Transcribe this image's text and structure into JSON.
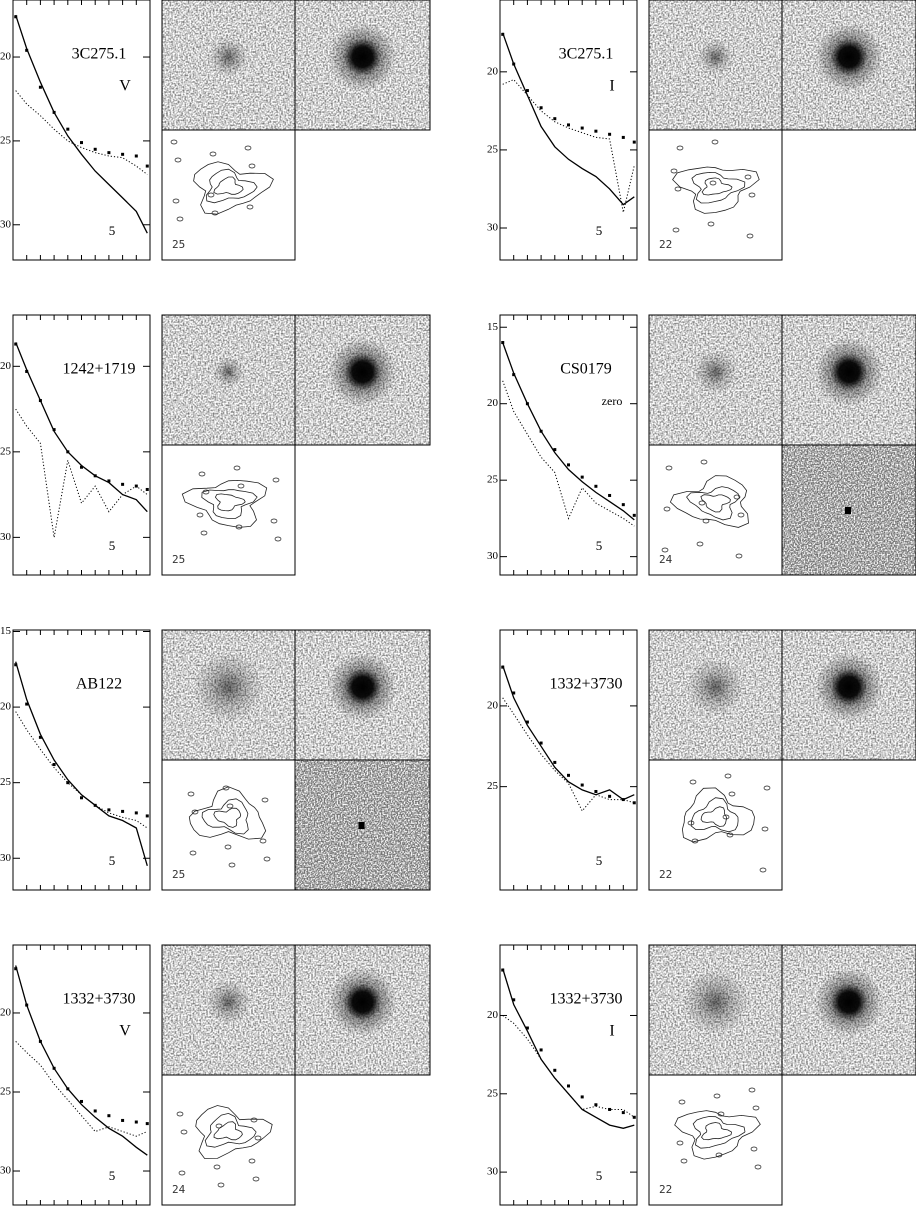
{
  "chart_data": [
    {
      "type": "line",
      "title": "3C275.1",
      "band": "V",
      "scale_label": "5",
      "contour_label": "25",
      "xlim": [
        0,
        10
      ],
      "ylim": [
        16.6,
        32.1
      ],
      "yticks": [
        20,
        25,
        30
      ],
      "x": [
        0.2,
        1,
        2,
        3,
        4,
        5,
        6,
        7,
        8,
        9,
        9.8
      ],
      "series": [
        {
          "style": "solid",
          "color": "#000000",
          "values": [
            17.5,
            19.5,
            21.5,
            23.3,
            24.7,
            25.8,
            26.8,
            27.6,
            28.4,
            29.2,
            30.5
          ]
        },
        {
          "style": "dotted",
          "color": "#000000",
          "values": [
            22,
            22.8,
            23.5,
            24.3,
            25,
            25.4,
            25.7,
            25.9,
            26,
            26.5,
            27
          ]
        },
        {
          "style": "points",
          "color": "#000000",
          "values": [
            17.6,
            19.6,
            21.8,
            23.3,
            24.3,
            25.1,
            25.5,
            25.7,
            25.8,
            25.9,
            26.5
          ]
        }
      ]
    },
    {
      "type": "line",
      "title": "3C275.1",
      "band": "I",
      "scale_label": "5",
      "contour_label": "22",
      "xlim": [
        0,
        10
      ],
      "ylim": [
        15.4,
        32.05
      ],
      "yticks": [
        20,
        25,
        30
      ],
      "x": [
        0.2,
        1,
        2,
        3,
        4,
        5,
        6,
        7,
        8,
        9,
        9.8
      ],
      "series": [
        {
          "style": "solid",
          "color": "#000000",
          "values": [
            17.5,
            19.5,
            21.5,
            23.5,
            24.8,
            25.6,
            26.2,
            26.7,
            27.5,
            28.5,
            28
          ]
        },
        {
          "style": "dotted",
          "color": "#000000",
          "values": [
            20.8,
            20.5,
            21.5,
            22.5,
            23.2,
            23.6,
            23.9,
            24.2,
            24.3,
            29,
            26
          ]
        },
        {
          "style": "points",
          "color": "#000000",
          "values": [
            17.6,
            19.5,
            21.2,
            22.3,
            23,
            23.4,
            23.6,
            23.8,
            24,
            24.2,
            24.5
          ]
        }
      ]
    },
    {
      "type": "line",
      "title": "1242+1719",
      "scale_label": "5",
      "contour_label": "25",
      "xlim": [
        0,
        10
      ],
      "ylim": [
        17.0,
        32.2
      ],
      "yticks": [
        20,
        25,
        30
      ],
      "x": [
        0.2,
        1,
        2,
        3,
        4,
        5,
        6,
        7,
        8,
        9,
        9.8
      ],
      "series": [
        {
          "style": "solid",
          "color": "#000000",
          "values": [
            18.6,
            20.2,
            22,
            23.8,
            25,
            25.8,
            26.4,
            26.8,
            27.5,
            27.8,
            28.5
          ]
        },
        {
          "style": "dotted",
          "color": "#000000",
          "values": [
            22.5,
            23.5,
            24.5,
            30,
            25.5,
            28,
            27,
            28.5,
            27.5,
            27,
            27.5
          ]
        },
        {
          "style": "points",
          "color": "#000000",
          "values": [
            18.7,
            20.3,
            22,
            23.7,
            25,
            25.9,
            26.4,
            26.7,
            26.9,
            27,
            27.2
          ]
        }
      ]
    },
    {
      "type": "line",
      "title": "CS0179",
      "band": "zero",
      "scale_label": "5",
      "contour_label": "24",
      "xlim": [
        0,
        10
      ],
      "ylim": [
        14.2,
        31.2
      ],
      "yticks": [
        15,
        20,
        25,
        30
      ],
      "x": [
        0.2,
        1,
        2,
        3,
        4,
        5,
        6,
        7,
        8,
        9,
        9.8
      ],
      "series": [
        {
          "style": "solid",
          "color": "#000000",
          "values": [
            16,
            18,
            20,
            21.8,
            23.2,
            24.3,
            25.1,
            25.8,
            26.4,
            27,
            27.6
          ]
        },
        {
          "style": "dotted",
          "color": "#000000",
          "values": [
            18.5,
            20.5,
            22,
            23.5,
            24.5,
            27.5,
            25.5,
            26.5,
            27,
            27.5,
            28
          ]
        },
        {
          "style": "points",
          "color": "#000000",
          "values": [
            16,
            18.1,
            20,
            21.8,
            23,
            24,
            24.8,
            25.4,
            26,
            26.6,
            27.3
          ]
        }
      ]
    },
    {
      "type": "line",
      "title": "AB122",
      "scale_label": "5",
      "contour_label": "25",
      "xlim": [
        0,
        10
      ],
      "ylim": [
        14.9,
        32.1
      ],
      "yticks": [
        15,
        20,
        25,
        30
      ],
      "x": [
        0.2,
        1,
        2,
        3,
        4,
        5,
        6,
        7,
        8,
        9,
        9.8
      ],
      "series": [
        {
          "style": "solid",
          "color": "#000000",
          "values": [
            17,
            19.5,
            21.8,
            23.5,
            24.8,
            25.8,
            26.5,
            27.2,
            27.5,
            28,
            30.5
          ]
        },
        {
          "style": "dotted",
          "color": "#000000",
          "values": [
            20.3,
            21.5,
            22.8,
            24,
            25,
            25.8,
            26.5,
            27,
            27.3,
            27.5,
            28
          ]
        },
        {
          "style": "points",
          "color": "#000000",
          "values": [
            17.2,
            19.8,
            22,
            23.8,
            25,
            26,
            26.5,
            26.8,
            26.9,
            27,
            27.2
          ]
        }
      ]
    },
    {
      "type": "line",
      "title": "1332+3730",
      "scale_label": "5",
      "contour_label": "22",
      "xlim": [
        0,
        10
      ],
      "ylim": [
        15.3,
        31.4
      ],
      "yticks": [
        20,
        25
      ],
      "x": [
        0.2,
        1,
        2,
        3,
        4,
        5,
        6,
        7,
        8,
        9,
        9.8
      ],
      "series": [
        {
          "style": "solid",
          "color": "#000000",
          "values": [
            17.5,
            19.5,
            21.2,
            22.5,
            23.8,
            24.7,
            25.2,
            25.5,
            25.2,
            25.8,
            25.5
          ]
        },
        {
          "style": "dotted",
          "color": "#000000",
          "values": [
            19.5,
            20.5,
            21.8,
            23,
            24,
            24.8,
            26.5,
            25.5,
            25.8,
            25.8,
            26
          ]
        },
        {
          "style": "points",
          "color": "#000000",
          "values": [
            17.6,
            19.2,
            21,
            22.3,
            23.5,
            24.3,
            24.9,
            25.3,
            25.6,
            25.8,
            26
          ]
        }
      ]
    },
    {
      "type": "line",
      "title": "1332+3730",
      "band": "V",
      "scale_label": "5",
      "contour_label": "24",
      "xlim": [
        0,
        10
      ],
      "ylim": [
        15.7,
        32.15
      ],
      "yticks": [
        20,
        25,
        30
      ],
      "x": [
        0.2,
        1,
        2,
        3,
        4,
        5,
        6,
        7,
        8,
        9,
        9.8
      ],
      "series": [
        {
          "style": "solid",
          "color": "#000000",
          "values": [
            17,
            19.5,
            21.8,
            23.5,
            24.8,
            25.8,
            26.6,
            27.3,
            27.8,
            28.5,
            29
          ]
        },
        {
          "style": "dotted",
          "color": "#000000",
          "values": [
            21.8,
            22.5,
            23.3,
            24.5,
            25.5,
            26.5,
            27.5,
            27.2,
            27.5,
            27.8,
            27.5
          ]
        },
        {
          "style": "points",
          "color": "#000000",
          "values": [
            17.2,
            19.5,
            21.8,
            23.5,
            24.8,
            25.6,
            26.2,
            26.5,
            26.8,
            26.9,
            27
          ]
        }
      ]
    },
    {
      "type": "line",
      "title": "1332+3730",
      "band": "I",
      "scale_label": "5",
      "contour_label": "22",
      "xlim": [
        0,
        10
      ],
      "ylim": [
        15.5,
        32.1
      ],
      "yticks": [
        20,
        25,
        30
      ],
      "x": [
        0.2,
        1,
        2,
        3,
        4,
        5,
        6,
        7,
        8,
        9,
        9.8
      ],
      "series": [
        {
          "style": "solid",
          "color": "#000000",
          "values": [
            17,
            19.3,
            21,
            22.8,
            24,
            25,
            26,
            26.5,
            27,
            27.2,
            27
          ]
        },
        {
          "style": "dotted",
          "color": "#000000",
          "values": [
            20,
            20.5,
            21.5,
            22.8,
            24,
            25,
            26,
            25.8,
            26,
            26,
            26.5
          ]
        },
        {
          "style": "points",
          "color": "#000000",
          "values": [
            17.1,
            19,
            20.8,
            22.2,
            23.5,
            24.5,
            25.2,
            25.7,
            26,
            26.2,
            26.5
          ]
        }
      ]
    }
  ]
}
